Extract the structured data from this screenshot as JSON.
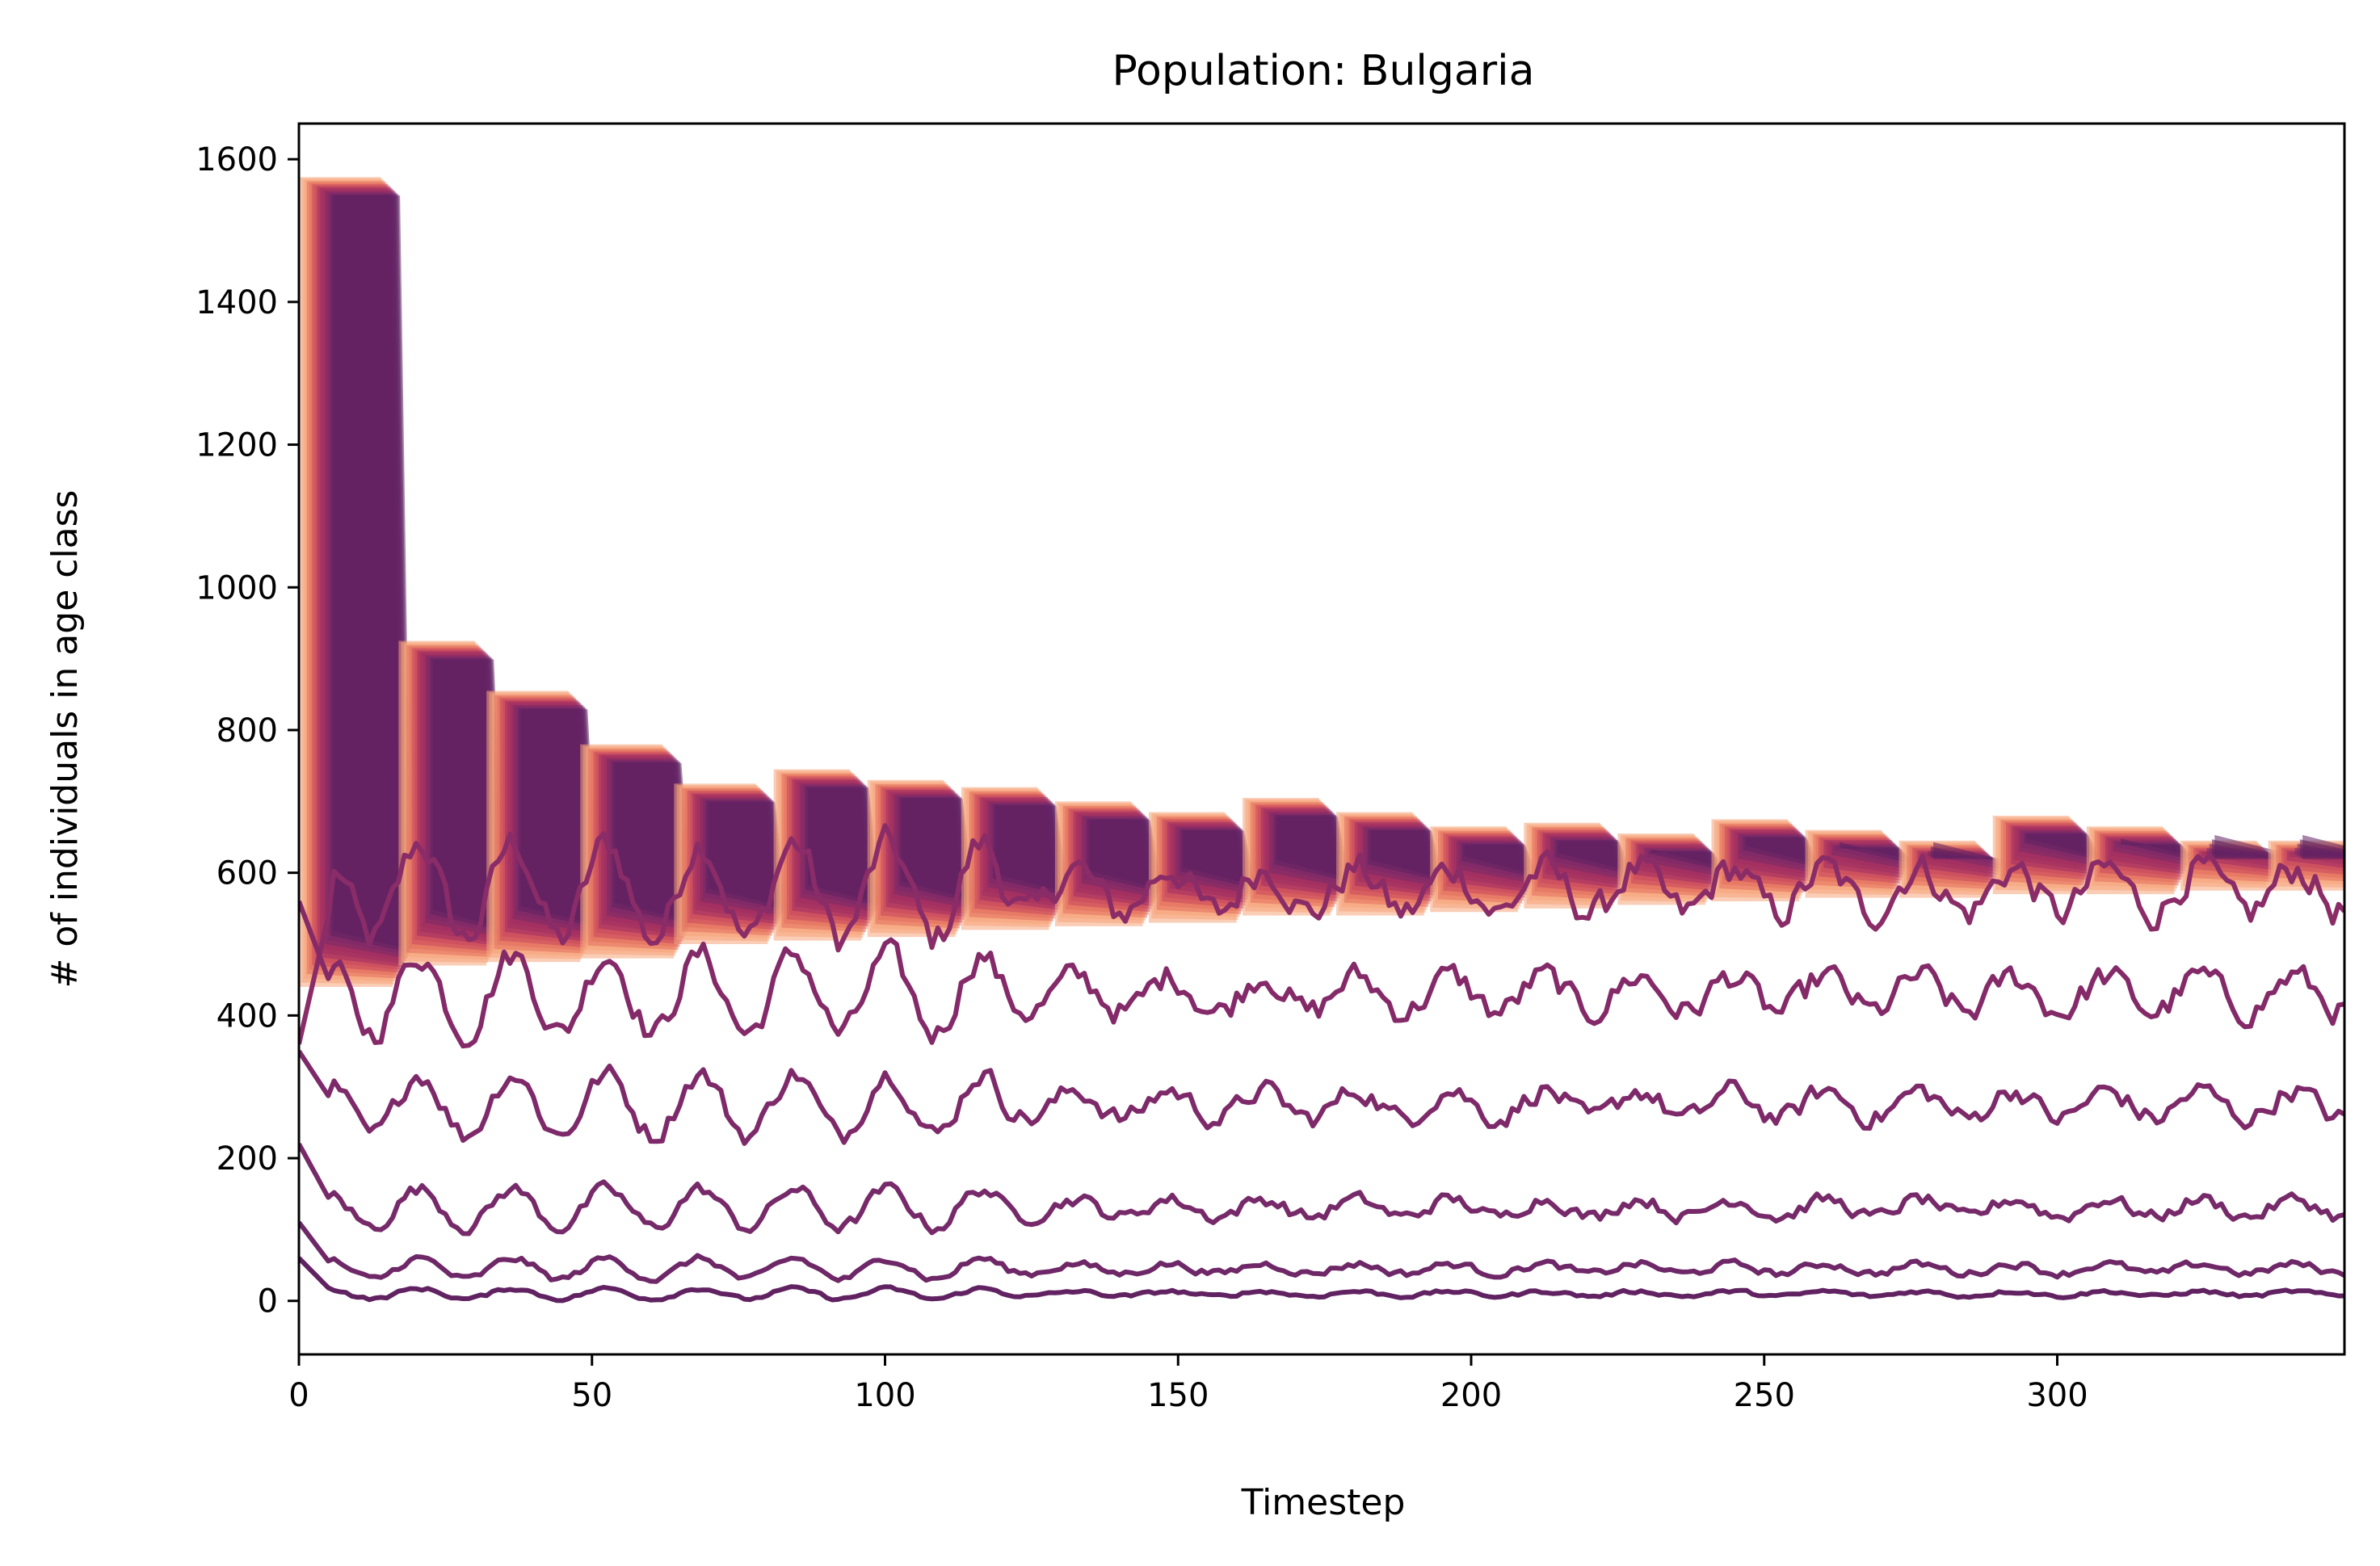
{
  "chart_data": {
    "type": "line",
    "title": "Population: Bulgaria",
    "xlabel": "Timestep",
    "ylabel": "# of individuals in age class",
    "xlim": [
      0,
      349
    ],
    "ylim": [
      -75,
      1650
    ],
    "xticks": [
      "0",
      "50",
      "100",
      "150",
      "200",
      "250",
      "300"
    ],
    "yticks": [
      "0",
      "200",
      "400",
      "600",
      "800",
      "1000",
      "1200",
      "1400",
      "1600"
    ],
    "grid": false,
    "legend": "none",
    "colormap": [
      "#f6a47a",
      "#e36d5d",
      "#c8475f",
      "#9e2e63",
      "#7a2a6a",
      "#5c2163"
    ],
    "cohort_series": {
      "description_values": "stepped cohort plateaus (start, end, level, base)",
      "blocks": [
        {
          "start": 0,
          "end": 14,
          "level": 1575,
          "base": 440
        },
        {
          "start": 17,
          "end": 30,
          "level": 925,
          "base": 470
        },
        {
          "start": 32,
          "end": 46,
          "level": 855,
          "base": 475
        },
        {
          "start": 48,
          "end": 62,
          "level": 780,
          "base": 480
        },
        {
          "start": 64,
          "end": 78,
          "level": 725,
          "base": 500
        },
        {
          "start": 81,
          "end": 94,
          "level": 745,
          "base": 505
        },
        {
          "start": 97,
          "end": 110,
          "level": 730,
          "base": 510
        },
        {
          "start": 113,
          "end": 126,
          "level": 720,
          "base": 520
        },
        {
          "start": 129,
          "end": 142,
          "level": 700,
          "base": 525
        },
        {
          "start": 145,
          "end": 158,
          "level": 685,
          "base": 530
        },
        {
          "start": 161,
          "end": 174,
          "level": 705,
          "base": 540
        },
        {
          "start": 177,
          "end": 190,
          "level": 685,
          "base": 540
        },
        {
          "start": 193,
          "end": 206,
          "level": 665,
          "base": 545
        },
        {
          "start": 209,
          "end": 222,
          "level": 670,
          "base": 550
        },
        {
          "start": 225,
          "end": 238,
          "level": 655,
          "base": 555
        },
        {
          "start": 241,
          "end": 254,
          "level": 675,
          "base": 560
        },
        {
          "start": 257,
          "end": 270,
          "level": 660,
          "base": 565
        },
        {
          "start": 273,
          "end": 286,
          "level": 645,
          "base": 565
        },
        {
          "start": 289,
          "end": 302,
          "level": 680,
          "base": 570
        },
        {
          "start": 305,
          "end": 318,
          "level": 665,
          "base": 570
        },
        {
          "start": 321,
          "end": 334,
          "level": 645,
          "base": 575
        },
        {
          "start": 336,
          "end": 349,
          "level": 645,
          "base": 575
        }
      ]
    },
    "series": [
      {
        "start": 360,
        "mean": 575,
        "amp": 55
      },
      {
        "start": 560,
        "mean": 430,
        "amp": 45
      },
      {
        "start": 350,
        "mean": 275,
        "amp": 35
      },
      {
        "start": 220,
        "mean": 130,
        "amp": 22
      },
      {
        "start": 110,
        "mean": 45,
        "amp": 12
      },
      {
        "start": 60,
        "mean": 10,
        "amp": 6
      }
    ]
  }
}
